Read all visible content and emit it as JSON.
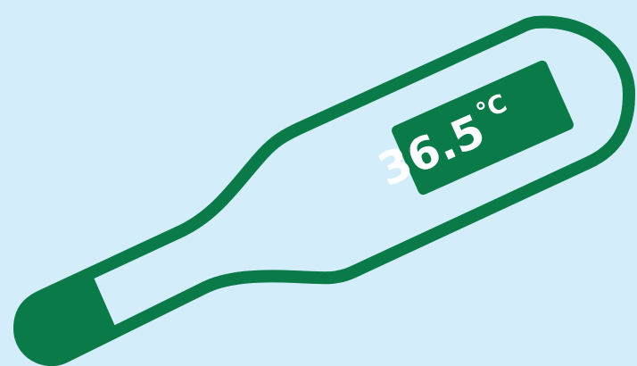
{
  "thermometer": {
    "reading": "36.5",
    "unit": "℃",
    "colors": {
      "background": "#d3edfa",
      "body_outline": "#097a48",
      "display_fill": "#097a48",
      "display_text": "#ffffff"
    }
  }
}
